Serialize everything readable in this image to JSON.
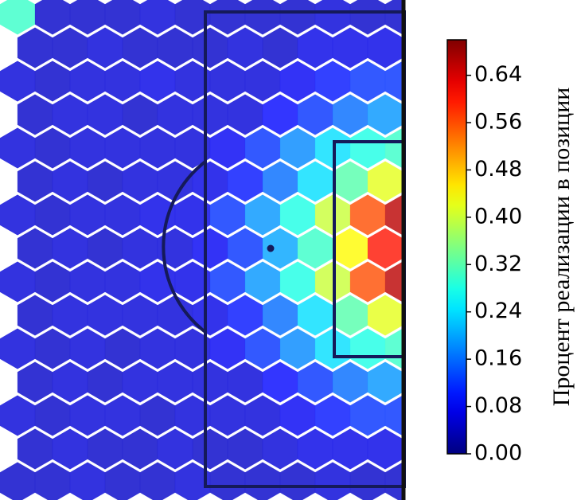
{
  "chart_data": {
    "type": "hexbin",
    "colormap": "jet",
    "alpha": 0.8,
    "colorbar_label": "Процент реализации в позиции",
    "clim": [
      0,
      0.7
    ],
    "cticks": [
      {
        "value": 0,
        "label": "0.00"
      },
      {
        "value": 0.08,
        "label": "0.08"
      },
      {
        "value": 0.16,
        "label": "0.16"
      },
      {
        "value": 0.24,
        "label": "0.24"
      },
      {
        "value": 0.32,
        "label": "0.32"
      },
      {
        "value": 0.4,
        "label": "0.40"
      },
      {
        "value": 0.48,
        "label": "0.48"
      },
      {
        "value": 0.56,
        "label": "0.56"
      },
      {
        "value": 0.64,
        "label": "0.64"
      }
    ],
    "grid_values": [
      [
        0.3,
        0.05,
        0.05,
        0.05,
        0.06,
        0.05,
        0.05,
        0.05,
        0.05,
        0.06,
        0.05,
        0.05
      ],
      [
        0.05,
        0.05,
        0.06,
        0.05,
        0.05,
        0.05,
        0.06,
        0.05,
        0.07,
        0.07,
        0.07,
        0.08
      ],
      [
        0.06,
        0.05,
        0.06,
        0.06,
        0.07,
        0.06,
        0.06,
        0.06,
        0.08,
        0.1,
        0.12,
        0.12
      ],
      [
        0.05,
        0.06,
        0.06,
        0.05,
        0.06,
        0.06,
        0.06,
        0.09,
        0.12,
        0.16,
        0.19,
        0.2
      ],
      [
        0.06,
        0.05,
        0.06,
        0.06,
        0.06,
        0.06,
        0.08,
        0.12,
        0.18,
        0.24,
        0.28,
        0.3
      ],
      [
        0.05,
        0.06,
        0.05,
        0.06,
        0.06,
        0.07,
        0.1,
        0.16,
        0.24,
        0.32,
        0.42,
        0.44
      ],
      [
        0.06,
        0.05,
        0.06,
        0.06,
        0.07,
        0.07,
        0.12,
        0.19,
        0.28,
        0.4,
        0.56,
        0.66
      ],
      [
        0.05,
        0.06,
        0.05,
        0.06,
        0.06,
        0.08,
        0.12,
        0.2,
        0.3,
        0.44,
        0.6,
        0.68
      ],
      [
        0.06,
        0.05,
        0.06,
        0.06,
        0.07,
        0.07,
        0.12,
        0.19,
        0.28,
        0.4,
        0.56,
        0.66
      ],
      [
        0.05,
        0.06,
        0.06,
        0.06,
        0.06,
        0.07,
        0.1,
        0.16,
        0.24,
        0.32,
        0.42,
        0.44
      ],
      [
        0.06,
        0.05,
        0.06,
        0.05,
        0.06,
        0.06,
        0.08,
        0.12,
        0.18,
        0.24,
        0.28,
        0.3
      ],
      [
        0.05,
        0.06,
        0.05,
        0.06,
        0.06,
        0.06,
        0.06,
        0.09,
        0.12,
        0.16,
        0.19,
        0.2
      ],
      [
        0.06,
        0.05,
        0.06,
        0.06,
        0.05,
        0.06,
        0.06,
        0.06,
        0.08,
        0.1,
        0.12,
        0.12
      ],
      [
        0.05,
        0.06,
        0.05,
        0.05,
        0.06,
        0.05,
        0.05,
        0.06,
        0.07,
        0.07,
        0.07,
        0.08
      ],
      [
        0.05,
        0.05,
        0.06,
        0.05,
        0.05,
        0.06,
        0.05,
        0.05,
        0.05,
        0.06,
        0.05,
        0.05
      ]
    ]
  }
}
